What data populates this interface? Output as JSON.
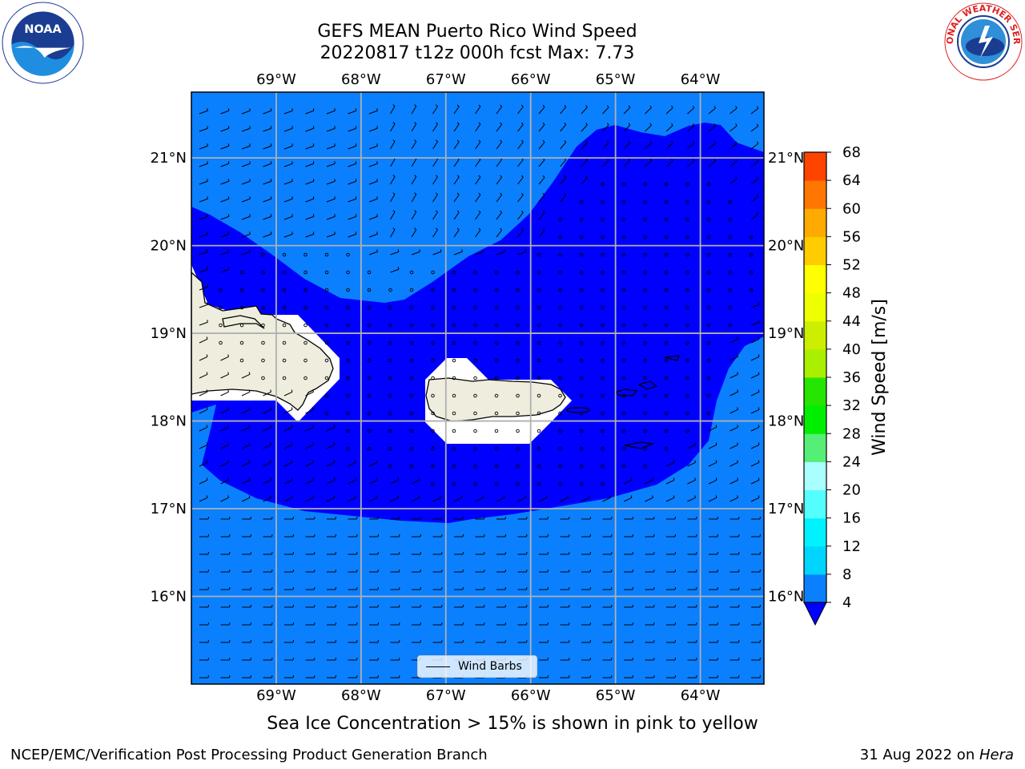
{
  "header": {
    "title_line1": "GEFS MEAN Puerto Rico Wind Speed",
    "title_line2": "20220817 t12z 000h fcst   Max: 7.73"
  },
  "logos": {
    "left": {
      "icon": "noaa-logo",
      "text": "NOAA"
    },
    "right": {
      "icon": "nws-logo",
      "text": "NATIONAL WEATHER SERVICE"
    }
  },
  "map": {
    "lon_labels": [
      "69°W",
      "68°W",
      "67°W",
      "66°W",
      "65°W",
      "64°W"
    ],
    "lat_labels": [
      "21°N",
      "20°N",
      "19°N",
      "18°N",
      "17°N",
      "16°N"
    ],
    "extent": {
      "lon_min": -70.0,
      "lon_max": -63.25,
      "lat_min": 15.0,
      "lat_max": 21.75
    },
    "colors": {
      "ocean_low": "#0a80ff",
      "ocean_mid": "#0000ff",
      "land": "#eeedde",
      "mask": "#ffffff",
      "grid": "#b0b0b0"
    },
    "legend_label": "Wind Barbs"
  },
  "colorbar": {
    "label": "Wind Speed [m/s]",
    "ticks": [
      "4",
      "8",
      "12",
      "16",
      "20",
      "24",
      "28",
      "32",
      "36",
      "40",
      "44",
      "48",
      "52",
      "56",
      "60",
      "64",
      "68"
    ],
    "colors": [
      "#0a80ff",
      "#00d5ff",
      "#00f2ff",
      "#55fefe",
      "#aafffe",
      "#55ee77",
      "#00ee00",
      "#26e500",
      "#aaee00",
      "#ccee00",
      "#eeff00",
      "#ffff00",
      "#ffcc00",
      "#ffaa00",
      "#ff7700",
      "#ff4400"
    ],
    "extend_color": "#0000ff"
  },
  "footer": {
    "sea_ice_note": "Sea Ice Concentration > 15% is shown in pink to yellow",
    "credit_left": "NCEP/EMC/Verification Post Processing Product Generation Branch",
    "credit_date": "31 Aug 2022 on ",
    "credit_host": "Hera"
  }
}
